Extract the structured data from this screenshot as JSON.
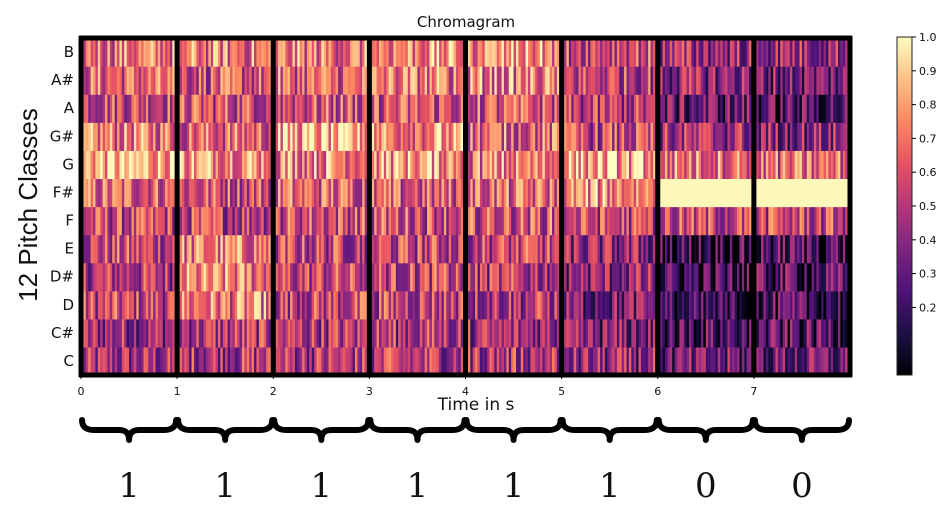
{
  "chart_data": {
    "type": "heatmap",
    "title": "Chromagram",
    "xlabel": "Time in s",
    "ylabel": "12 Pitch Classes",
    "xlim": [
      0,
      8
    ],
    "x_ticks": [
      "0",
      "1",
      "2",
      "3",
      "4",
      "5",
      "6",
      "7"
    ],
    "y_categories": [
      "C",
      "C#",
      "D",
      "D#",
      "E",
      "F",
      "F#",
      "G",
      "G#",
      "A",
      "A#",
      "B"
    ],
    "segment_boundaries": [
      0,
      1,
      2,
      3,
      4,
      5,
      6,
      7,
      8
    ],
    "segment_bits": [
      "1",
      "1",
      "1",
      "1",
      "1",
      "1",
      "0",
      "0"
    ],
    "colorbar": {
      "colormap": "magma",
      "range": [
        0.0,
        1.0
      ],
      "ticks": [
        "1.0",
        "0.9",
        "0.8",
        "0.7",
        "0.6",
        "0.5",
        "0.4",
        "0.3",
        "0.2"
      ]
    },
    "segment_profiles": [
      {
        "segment": 1,
        "C": 0.45,
        "C#": 0.45,
        "D": 0.55,
        "D#": 0.5,
        "E": 0.55,
        "F": 0.55,
        "F#": 0.65,
        "G": 0.85,
        "G#": 0.7,
        "A": 0.6,
        "A#": 0.65,
        "B": 0.7
      },
      {
        "segment": 2,
        "C": 0.5,
        "C#": 0.5,
        "D": 0.7,
        "D#": 0.7,
        "E": 0.7,
        "F": 0.55,
        "F#": 0.6,
        "G": 0.8,
        "G#": 0.65,
        "A": 0.6,
        "A#": 0.6,
        "B": 0.7
      },
      {
        "segment": 3,
        "C": 0.5,
        "C#": 0.5,
        "D": 0.55,
        "D#": 0.55,
        "E": 0.55,
        "F": 0.6,
        "F#": 0.65,
        "G": 0.75,
        "G#": 0.8,
        "A": 0.6,
        "A#": 0.65,
        "B": 0.7
      },
      {
        "segment": 4,
        "C": 0.5,
        "C#": 0.5,
        "D": 0.55,
        "D#": 0.55,
        "E": 0.55,
        "F": 0.6,
        "F#": 0.6,
        "G": 0.8,
        "G#": 0.75,
        "A": 0.6,
        "A#": 0.7,
        "B": 0.75
      },
      {
        "segment": 5,
        "C": 0.5,
        "C#": 0.45,
        "D": 0.5,
        "D#": 0.5,
        "E": 0.55,
        "F": 0.6,
        "F#": 0.65,
        "G": 0.7,
        "G#": 0.65,
        "A": 0.6,
        "A#": 0.7,
        "B": 0.75
      },
      {
        "segment": 6,
        "C": 0.4,
        "C#": 0.35,
        "D": 0.35,
        "D#": 0.4,
        "E": 0.4,
        "F": 0.55,
        "F#": 0.75,
        "G": 0.8,
        "G#": 0.55,
        "A": 0.5,
        "A#": 0.55,
        "B": 0.6
      },
      {
        "segment": 7,
        "C": 0.3,
        "C#": 0.25,
        "D": 0.15,
        "D#": 0.2,
        "E": 0.2,
        "F": 0.55,
        "F#": 1.0,
        "G": 0.7,
        "G#": 0.45,
        "A": 0.3,
        "A#": 0.4,
        "B": 0.45
      },
      {
        "segment": 8,
        "C": 0.3,
        "C#": 0.25,
        "D": 0.2,
        "D#": 0.25,
        "E": 0.25,
        "F": 0.55,
        "F#": 1.0,
        "G": 0.65,
        "G#": 0.4,
        "A": 0.25,
        "A#": 0.35,
        "B": 0.45
      }
    ]
  }
}
